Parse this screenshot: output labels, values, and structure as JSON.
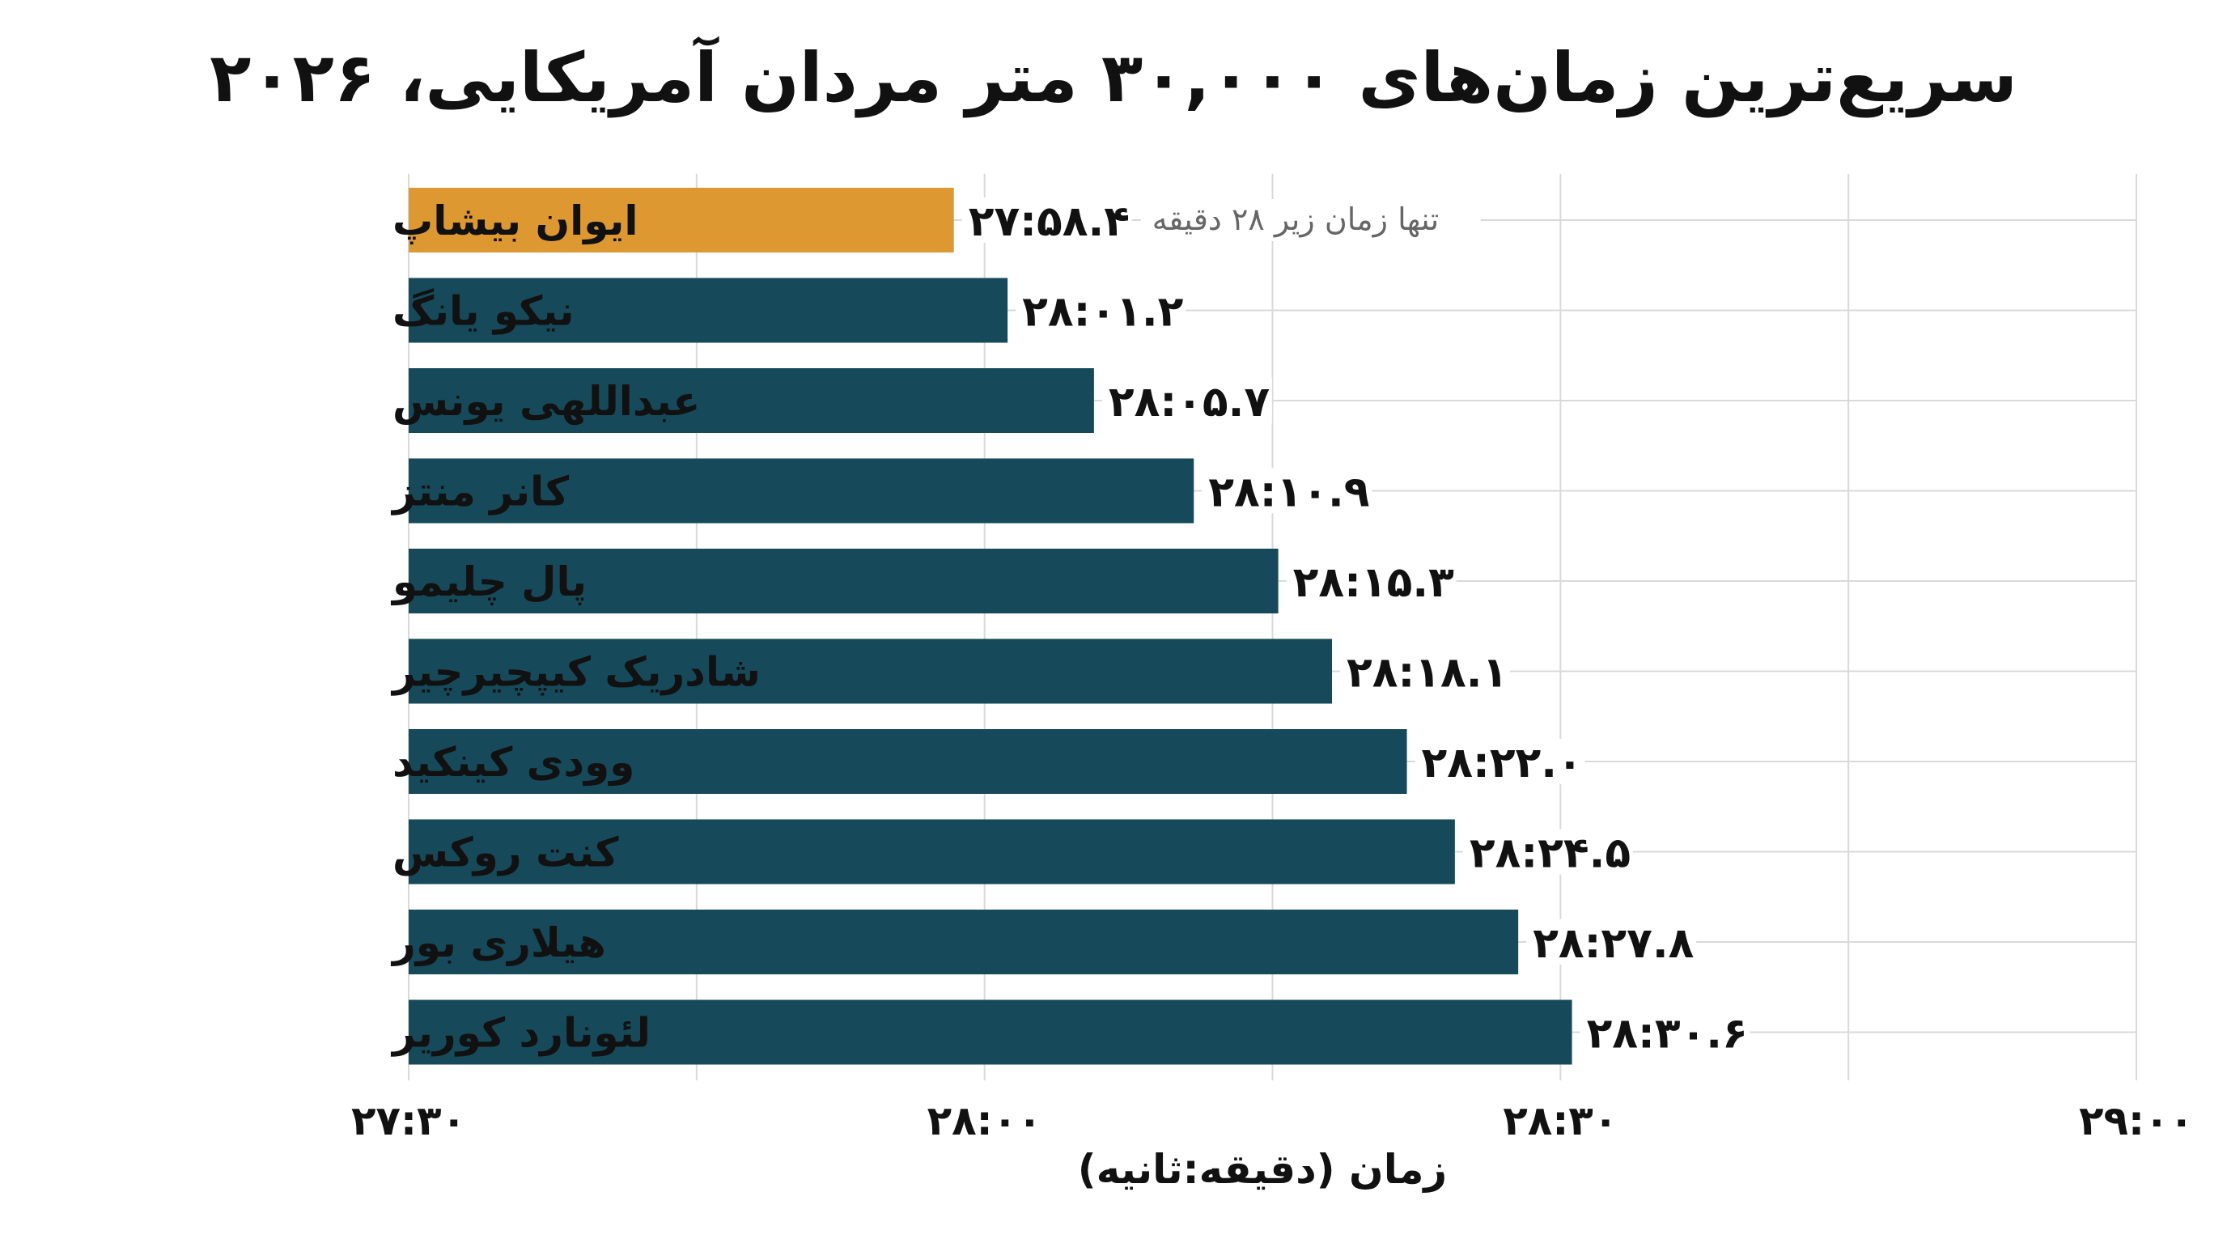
{
  "chart_data": {
    "type": "bar",
    "orientation": "horizontal",
    "title": "سریع‌ترین زمان‌های ۳۰,۰۰۰ متر مردان آمریکایی، ۲۰۲۶",
    "xlabel": "زمان (دقیقه:ثانیه)",
    "ylabel": "",
    "xlim": [
      1650,
      1740
    ],
    "x_unit": "seconds",
    "x_ticks": [
      {
        "value": 1650,
        "label": "۲۷:۳۰"
      },
      {
        "value": 1680,
        "label": "۲۸:۰۰"
      },
      {
        "value": 1710,
        "label": "۲۸:۳۰"
      },
      {
        "value": 1740,
        "label": "۲۹:۰۰"
      }
    ],
    "grid": true,
    "categories": [
      "ایوان بیشاپ",
      "نیکو یانگ",
      "عبداللهی یونس",
      "کانر منتز",
      "پال چلیمو",
      "شادریک کیپچیرچیر",
      "وودی کینکید",
      "کنت روکس",
      "هیلاری بور",
      "لئونارد کوریر"
    ],
    "values": [
      1678.4,
      1681.2,
      1685.7,
      1690.9,
      1695.3,
      1698.1,
      1702.0,
      1704.5,
      1707.8,
      1710.6
    ],
    "value_labels": [
      "۲۷:۵۸.۴",
      "۲۸:۰۱.۲",
      "۲۸:۰۵.۷",
      "۲۸:۱۰.۹",
      "۲۸:۱۵.۳",
      "۲۸:۱۸.۱",
      "۲۸:۲۲.۰",
      "۲۸:۲۴.۵",
      "۲۸:۲۷.۸",
      "۲۸:۳۰.۶"
    ],
    "highlight_index": 0,
    "annotation": "تنها زمان زیر ۲۸ دقیقه",
    "colors": {
      "highlight": "#DD9831",
      "bar": "#164A5A",
      "grid": "#D9D9D9",
      "text": "#111111",
      "annotation": "#666666"
    }
  }
}
